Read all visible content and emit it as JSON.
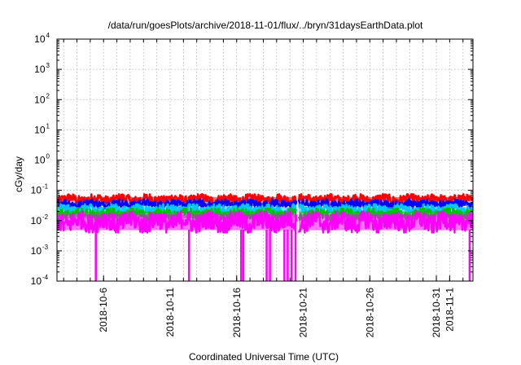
{
  "chart_data": {
    "type": "line",
    "title": "/data/run/goesPlots/archive/2018-11-01/flux/../bryn/31daysEarthData.plot",
    "xlabel": "Coordinated Universal Time (UTC)",
    "ylabel": "cGy/day",
    "yscale": "log",
    "ylim": [
      0.0001,
      10000
    ],
    "xlim": [
      "2018-10-02T12:00",
      "2018-11-02T18:00"
    ],
    "grid": true,
    "legend": "none",
    "y_ticks": [
      {
        "base": "10",
        "exp": "-4",
        "value": 0.0001
      },
      {
        "base": "10",
        "exp": "-3",
        "value": 0.001
      },
      {
        "base": "10",
        "exp": "-2",
        "value": 0.01
      },
      {
        "base": "10",
        "exp": "-1",
        "value": 0.1
      },
      {
        "base": "10",
        "exp": "0",
        "value": 1
      },
      {
        "base": "10",
        "exp": "1",
        "value": 10
      },
      {
        "base": "10",
        "exp": "2",
        "value": 100
      },
      {
        "base": "10",
        "exp": "3",
        "value": 1000
      },
      {
        "base": "10",
        "exp": "4",
        "value": 10000
      }
    ],
    "x_ticks": [
      {
        "label": "2018-10-6",
        "date": "2018-10-06"
      },
      {
        "label": "2018-10-11",
        "date": "2018-10-11"
      },
      {
        "label": "2018-10-16",
        "date": "2018-10-16"
      },
      {
        "label": "2018-10-21",
        "date": "2018-10-21"
      },
      {
        "label": "2018-10-26",
        "date": "2018-10-26"
      },
      {
        "label": "2018-10-31",
        "date": "2018-10-31"
      },
      {
        "label": "2018-11-1",
        "date": "2018-11-01"
      }
    ],
    "series": [
      {
        "color": "#ff0000",
        "min": 0.035,
        "max": 0.075
      },
      {
        "color": "#0000ff",
        "min": 0.025,
        "max": 0.05
      },
      {
        "color": "#00c8ff",
        "min": 0.015,
        "max": 0.035
      },
      {
        "color": "#00c000",
        "min": 0.01,
        "max": 0.025
      },
      {
        "color": "#ff00ff",
        "min": 0.004,
        "max": 0.02
      }
    ],
    "data_gap": {
      "start": "2018-10-20T12:00",
      "end": "2018-10-20T16:00"
    },
    "dropouts": [
      {
        "date": "2018-10-05T10:00",
        "value": 0.0001
      },
      {
        "date": "2018-10-12T10:00",
        "value": 0.0001
      },
      {
        "date": "2018-10-16T08:00",
        "value": 0.0001
      },
      {
        "date": "2018-10-16T12:00",
        "value": 0.0001
      },
      {
        "date": "2018-10-18T06:00",
        "value": 0.0001
      },
      {
        "date": "2018-10-18T12:00",
        "value": 0.0001
      },
      {
        "date": "2018-10-19T14:00",
        "value": 0.0001
      },
      {
        "date": "2018-10-19T20:00",
        "value": 0.0001
      },
      {
        "date": "2018-10-20T03:00",
        "value": 0.0001
      },
      {
        "date": "2018-10-20T10:00",
        "value": 0.0001
      },
      {
        "date": "2018-11-02T12:00",
        "value": 0.0001
      }
    ]
  }
}
